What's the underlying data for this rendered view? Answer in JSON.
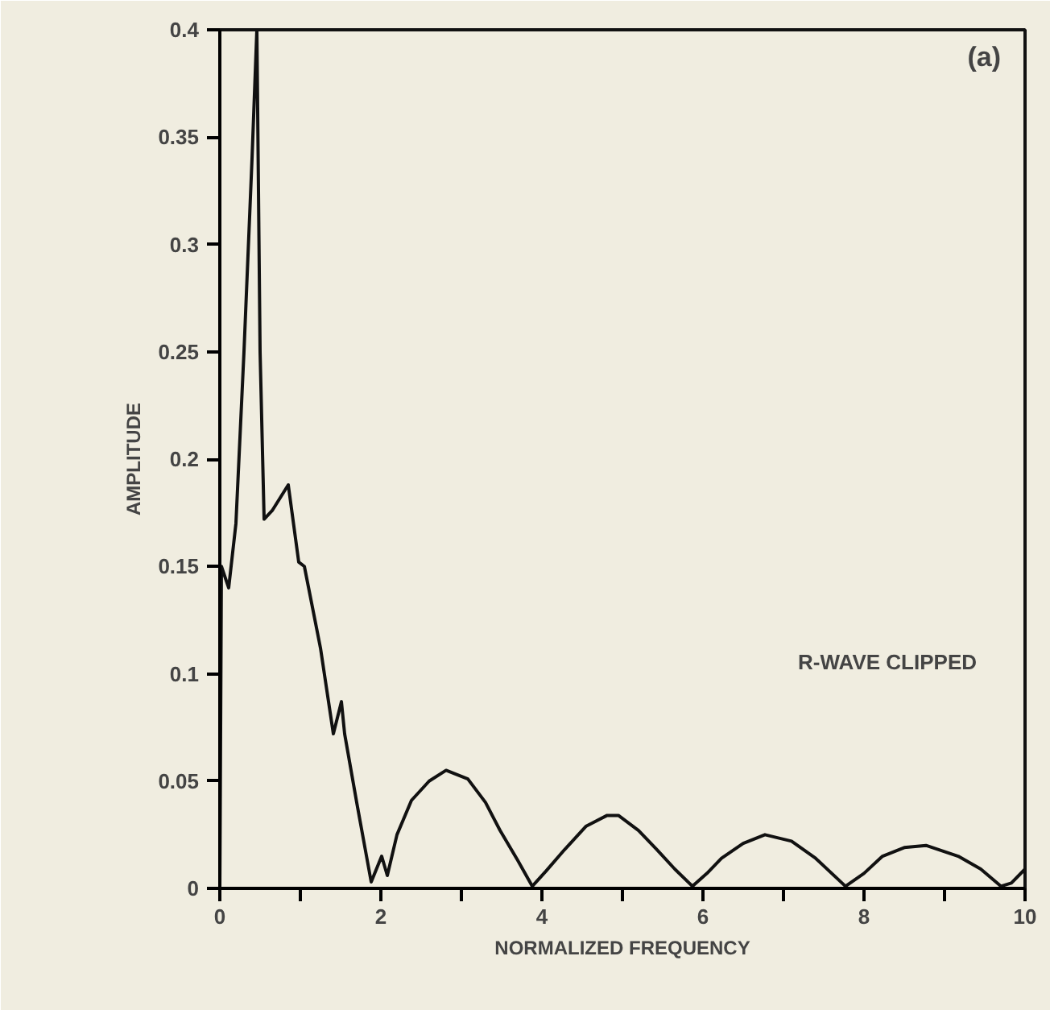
{
  "chart_data": {
    "type": "line",
    "xlabel": "NORMALIZED FREQUENCY",
    "ylabel": "AMPLITUDE",
    "annotations": [
      "(a)",
      "R-WAVE CLIPPED"
    ],
    "series": [
      {
        "color": "#111111",
        "x": [
          0,
          0.02,
          0.11,
          0.2,
          0.3,
          0.4,
          0.46,
          0.5,
          0.55,
          0.65,
          0.75,
          0.85,
          0.98,
          1.05,
          1.25,
          1.41,
          1.51,
          1.55,
          1.7,
          1.88,
          2.01,
          2.08,
          2.2,
          2.38,
          2.6,
          2.81,
          3.08,
          3.3,
          3.48,
          3.7,
          3.88,
          4.05,
          4.28,
          4.55,
          4.81,
          4.95,
          5.2,
          5.43,
          5.65,
          5.87,
          6.05,
          6.23,
          6.5,
          6.77,
          7.1,
          7.4,
          7.77,
          8.0,
          8.23,
          8.5,
          8.77,
          9.17,
          9.45,
          9.7,
          9.83,
          10
        ],
        "values": [
          0,
          0.15,
          0.14,
          0.17,
          0.25,
          0.34,
          0.4,
          0.25,
          0.172,
          0.176,
          0.182,
          0.188,
          0.152,
          0.15,
          0.112,
          0.072,
          0.087,
          0.072,
          0.04,
          0.003,
          0.015,
          0.006,
          0.025,
          0.041,
          0.05,
          0.055,
          0.051,
          0.04,
          0.027,
          0.013,
          0.001,
          0.008,
          0.018,
          0.029,
          0.034,
          0.034,
          0.027,
          0.018,
          0.009,
          0.001,
          0.007,
          0.014,
          0.021,
          0.025,
          0.022,
          0.014,
          0.001,
          0.007,
          0.015,
          0.019,
          0.02,
          0.015,
          0.009,
          0.001,
          0.0025,
          0.009
        ]
      }
    ],
    "xlim": [
      0,
      10
    ],
    "ylim": [
      0,
      0.4
    ],
    "xticks": [
      0,
      {
        "value": 1,
        "label": null
      },
      2,
      {
        "value": 3,
        "label": null
      },
      4,
      {
        "value": 5,
        "label": null
      },
      6,
      {
        "value": 7,
        "label": null
      },
      8,
      {
        "value": 9,
        "label": null
      },
      10
    ],
    "yticks": [
      0,
      0.05,
      0.1,
      0.15,
      0.2,
      0.25,
      0.3,
      0.35,
      0.4
    ],
    "grid": false,
    "line_style": "solid"
  }
}
